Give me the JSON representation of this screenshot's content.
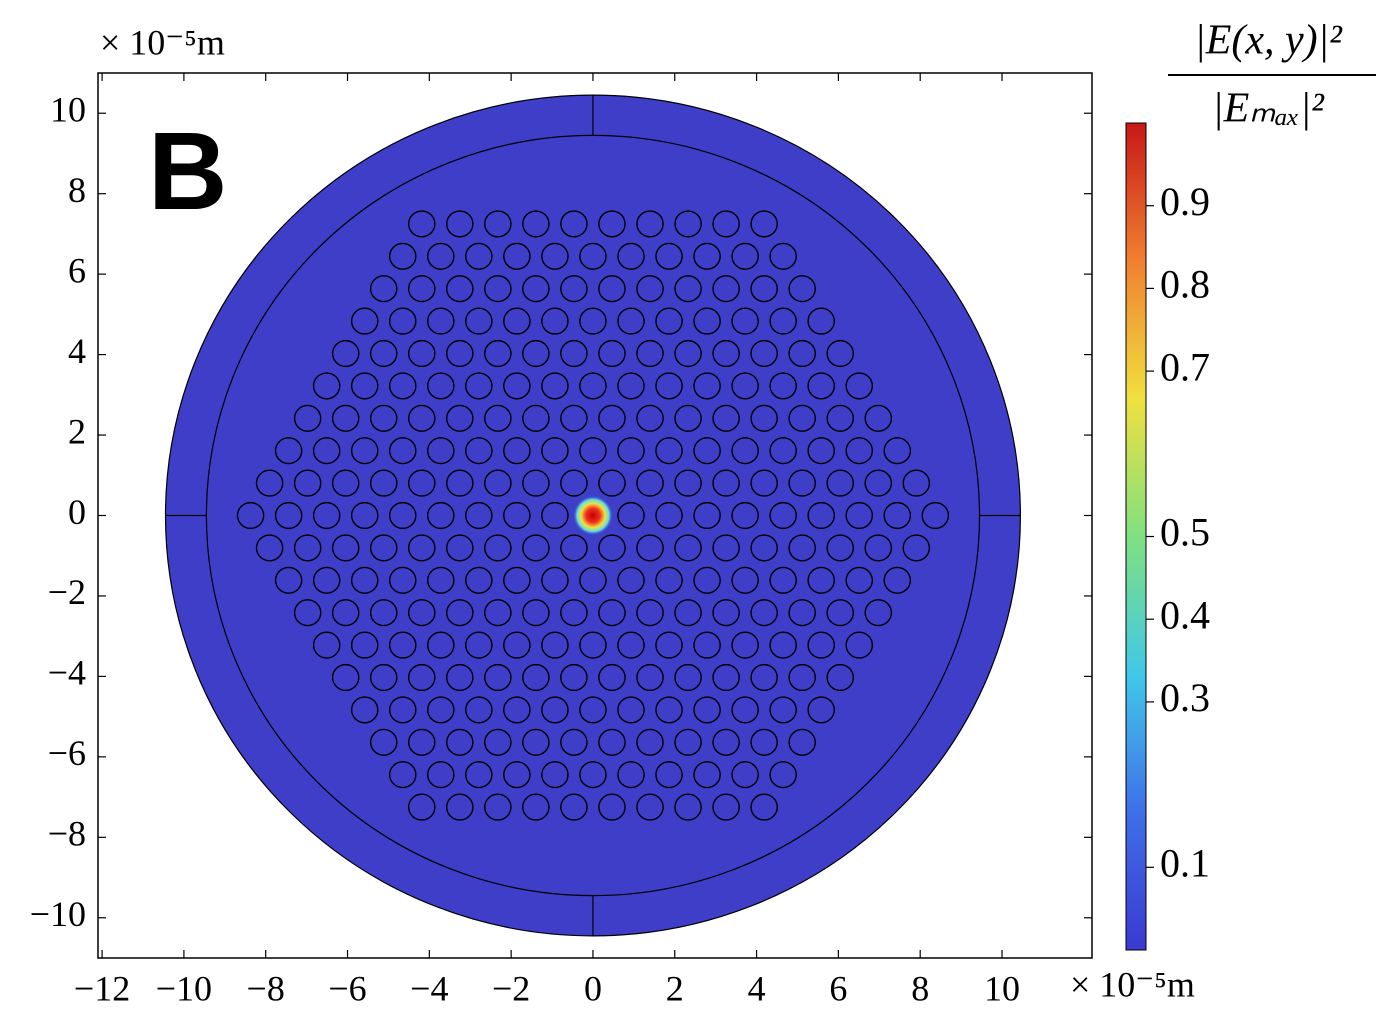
{
  "chart_data": {
    "type": "field",
    "panel_label": "B",
    "y_unit_label": "× 10⁻⁵m",
    "x_unit_label": "× 10⁻⁵m",
    "colorbar_label_numerator": "|E(x, y)|²",
    "colorbar_label_denominator": "|Eₘₐₓ|²",
    "xlim": [
      -12.1,
      12.2
    ],
    "ylim": [
      -11,
      11
    ],
    "xticks": [
      {
        "value": -12,
        "label": "−12"
      },
      {
        "value": -10,
        "label": "−10"
      },
      {
        "value": -8,
        "label": "−8"
      },
      {
        "value": -6,
        "label": "−6"
      },
      {
        "value": -4,
        "label": "−4"
      },
      {
        "value": -2,
        "label": "−2"
      },
      0,
      2,
      4,
      6,
      8,
      10
    ],
    "yticks": [
      {
        "value": -10,
        "label": "−10"
      },
      {
        "value": -8,
        "label": "−8"
      },
      {
        "value": -6,
        "label": "−6"
      },
      {
        "value": -4,
        "label": "−4"
      },
      {
        "value": -2,
        "label": "−2"
      },
      0,
      2,
      4,
      6,
      8,
      10
    ],
    "clim": [
      0,
      1
    ],
    "cticks": [
      0.1,
      0.3,
      0.4,
      0.5,
      0.7,
      0.8,
      0.9
    ],
    "colormap": [
      "#3a3ad0",
      "#3f6fe8",
      "#40c8e8",
      "#80e080",
      "#f0e040",
      "#f08030",
      "#c81818"
    ],
    "field_color": "#3e3ec8",
    "outer_radius": 10.45,
    "cladding_radius": 9.45,
    "pitch": 0.93,
    "hole_radius": 0.32,
    "rings": 9
  }
}
